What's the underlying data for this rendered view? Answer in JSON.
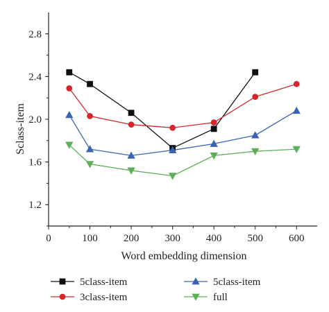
{
  "chart_data": {
    "type": "line",
    "xlabel": "Word embedding dimension",
    "ylabel": "Sclass-item",
    "xlim": [
      0,
      650
    ],
    "ylim": [
      1.0,
      3.0
    ],
    "xticks": [
      0,
      100,
      200,
      300,
      400,
      500,
      600
    ],
    "yticks": [
      1.2,
      1.6,
      2.0,
      2.4,
      2.8
    ],
    "xtick_labels": [
      "0",
      "100",
      "200",
      "300",
      "400",
      "500",
      "600"
    ],
    "ytick_labels": [
      "1.2",
      "1.6",
      "2.0",
      "2.4",
      "2.8"
    ],
    "grid": false,
    "legend_position": "bottom",
    "series": [
      {
        "name": "5class-item",
        "marker": "square",
        "color": "#111111",
        "x": [
          50,
          100,
          200,
          300,
          400,
          500
        ],
        "values": [
          2.44,
          2.33,
          2.06,
          1.73,
          1.91,
          2.44
        ]
      },
      {
        "name": "3class-item",
        "marker": "circle",
        "color": "#d7262b",
        "x": [
          50,
          100,
          200,
          300,
          400,
          500,
          600
        ],
        "values": [
          2.29,
          2.03,
          1.95,
          1.92,
          1.97,
          2.21,
          2.33
        ]
      },
      {
        "name": "5class-item",
        "marker": "triangle-up",
        "color": "#3b63b3",
        "x": [
          50,
          100,
          200,
          300,
          400,
          500,
          600
        ],
        "values": [
          2.04,
          1.72,
          1.66,
          1.71,
          1.77,
          1.85,
          2.08
        ]
      },
      {
        "name": "full",
        "marker": "triangle-down",
        "color": "#5fae58",
        "x": [
          50,
          100,
          200,
          300,
          400,
          500,
          600
        ],
        "values": [
          1.76,
          1.58,
          1.52,
          1.47,
          1.66,
          1.7,
          1.72
        ]
      }
    ]
  }
}
